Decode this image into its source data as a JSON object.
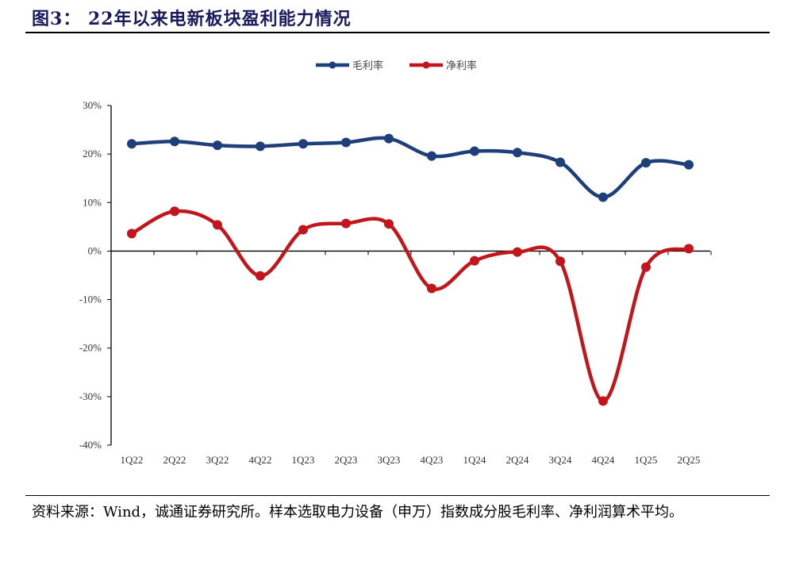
{
  "title": "图3：  22年以来电新板块盈利能力情况",
  "source": "资料来源：Wind，诚通证券研究所。样本选取电力设备（申万）指数成分股毛利率、净利润算术平均。",
  "chart_data": {
    "type": "line",
    "categories": [
      "1Q22",
      "2Q22",
      "3Q22",
      "4Q22",
      "1Q23",
      "2Q23",
      "3Q23",
      "4Q23",
      "1Q24",
      "2Q24",
      "3Q24",
      "4Q24",
      "1Q25",
      "2Q25"
    ],
    "series": [
      {
        "name": "毛利率",
        "color": "#1f3f7a",
        "values": [
          22.1,
          22.6,
          21.8,
          21.6,
          22.1,
          22.4,
          23.2,
          19.6,
          20.6,
          20.3,
          18.3,
          11.1,
          18.2,
          17.8
        ]
      },
      {
        "name": "净利率",
        "color": "#c0161c",
        "values": [
          3.6,
          8.2,
          5.4,
          -5.1,
          4.4,
          5.7,
          5.6,
          -7.7,
          -2.0,
          -0.2,
          -2.1,
          -30.9,
          -3.3,
          0.5
        ]
      }
    ],
    "ylim": [
      -40,
      30
    ],
    "yticks": [
      "-40%",
      "-30%",
      "-20%",
      "-10%",
      "0%",
      "10%",
      "20%",
      "30%"
    ],
    "ytick_values": [
      -40,
      -30,
      -20,
      -10,
      0,
      10,
      20,
      30
    ],
    "smooth": true,
    "markers": true,
    "grid": false,
    "legend": "top-center"
  }
}
